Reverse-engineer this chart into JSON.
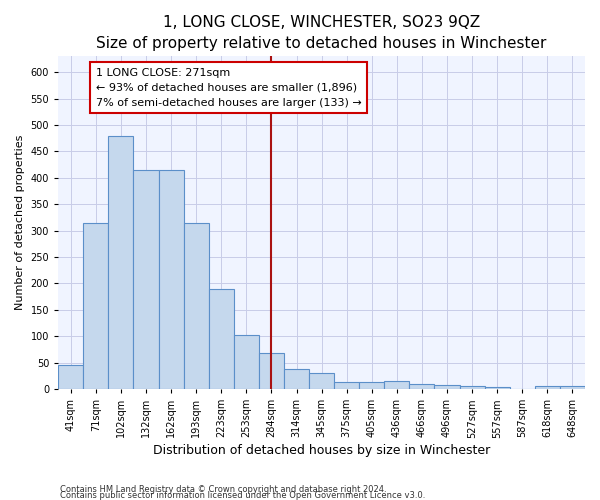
{
  "title": "1, LONG CLOSE, WINCHESTER, SO23 9QZ",
  "subtitle": "Size of property relative to detached houses in Winchester",
  "xlabel": "Distribution of detached houses by size in Winchester",
  "ylabel": "Number of detached properties",
  "categories": [
    "41sqm",
    "71sqm",
    "102sqm",
    "132sqm",
    "162sqm",
    "193sqm",
    "223sqm",
    "253sqm",
    "284sqm",
    "314sqm",
    "345sqm",
    "375sqm",
    "405sqm",
    "436sqm",
    "466sqm",
    "496sqm",
    "527sqm",
    "557sqm",
    "587sqm",
    "618sqm",
    "648sqm"
  ],
  "values": [
    45,
    315,
    480,
    415,
    415,
    315,
    190,
    103,
    68,
    37,
    30,
    14,
    13,
    15,
    10,
    8,
    5,
    4,
    0,
    5,
    5
  ],
  "bar_color": "#c5d8ed",
  "bar_edge_color": "#5b8fc9",
  "vline_color": "#aa1111",
  "annotation_text": "1 LONG CLOSE: 271sqm\n← 93% of detached houses are smaller (1,896)\n7% of semi-detached houses are larger (133) →",
  "annotation_box_color": "#ffffff",
  "annotation_border_color": "#cc0000",
  "ylim": [
    0,
    630
  ],
  "yticks": [
    0,
    50,
    100,
    150,
    200,
    250,
    300,
    350,
    400,
    450,
    500,
    550,
    600
  ],
  "footnote1": "Contains HM Land Registry data © Crown copyright and database right 2024.",
  "footnote2": "Contains public sector information licensed under the Open Government Licence v3.0.",
  "title_fontsize": 11,
  "subtitle_fontsize": 9,
  "xlabel_fontsize": 9,
  "ylabel_fontsize": 8,
  "tick_fontsize": 7,
  "annot_fontsize": 8,
  "footnote_fontsize": 6,
  "bg_color": "#f0f4ff",
  "grid_color": "#c8cce8"
}
